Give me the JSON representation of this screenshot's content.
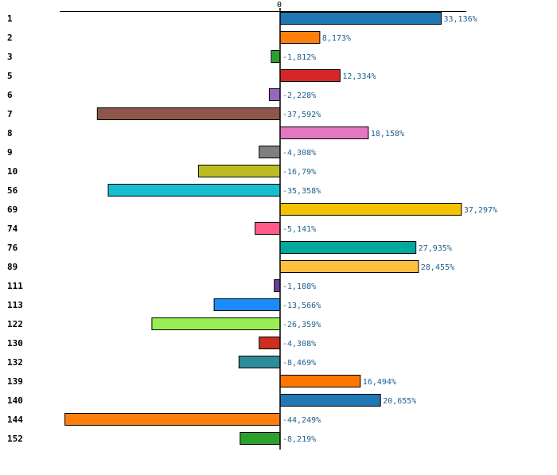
{
  "chart_data": {
    "type": "bar",
    "orientation": "horizontal",
    "title": "",
    "xlabel": "",
    "ylabel": "",
    "zero_tick_label": "0",
    "xlim": [
      -48.2,
      51.5
    ],
    "categories": [
      "1",
      "2",
      "3",
      "5",
      "6",
      "7",
      "8",
      "9",
      "10",
      "56",
      "69",
      "74",
      "76",
      "89",
      "111",
      "113",
      "122",
      "130",
      "132",
      "139",
      "140",
      "144",
      "152"
    ],
    "values": [
      33.136,
      8.173,
      -1.812,
      12.334,
      -2.228,
      -37.592,
      18.158,
      -4.308,
      -16.79,
      -35.358,
      37.297,
      -5.141,
      27.935,
      28.455,
      -1.188,
      -13.566,
      -26.359,
      -4.308,
      -8.469,
      16.494,
      20.655,
      -44.249,
      -8.219
    ],
    "value_labels": [
      "33,136%",
      "8,173%",
      "-1,812%",
      "12,334%",
      "-2,228%",
      "-37,592%",
      "18,158%",
      "-4,308%",
      "-16,79%",
      "-35,358%",
      "37,297%",
      "-5,141%",
      "27,935%",
      "28,455%",
      "-1,188%",
      "-13,566%",
      "-26,359%",
      "-4,308%",
      "-8,469%",
      "16,494%",
      "20,655%",
      "-44,249%",
      "-8,219%"
    ],
    "colors": [
      "#1f77b4",
      "#ff7f0e",
      "#2ca02c",
      "#d62728",
      "#9467bd",
      "#8c564b",
      "#e377c2",
      "#7f7f7f",
      "#bcbd22",
      "#17becf",
      "#f2c200",
      "#ff5c8a",
      "#00a99d",
      "#ffbf40",
      "#6a3d9a",
      "#1a8cff",
      "#99ee55",
      "#cc2f1f",
      "#2e8b9a",
      "#ff7600",
      "#1f77b4",
      "#ff7f0e",
      "#2ca02c"
    ]
  }
}
